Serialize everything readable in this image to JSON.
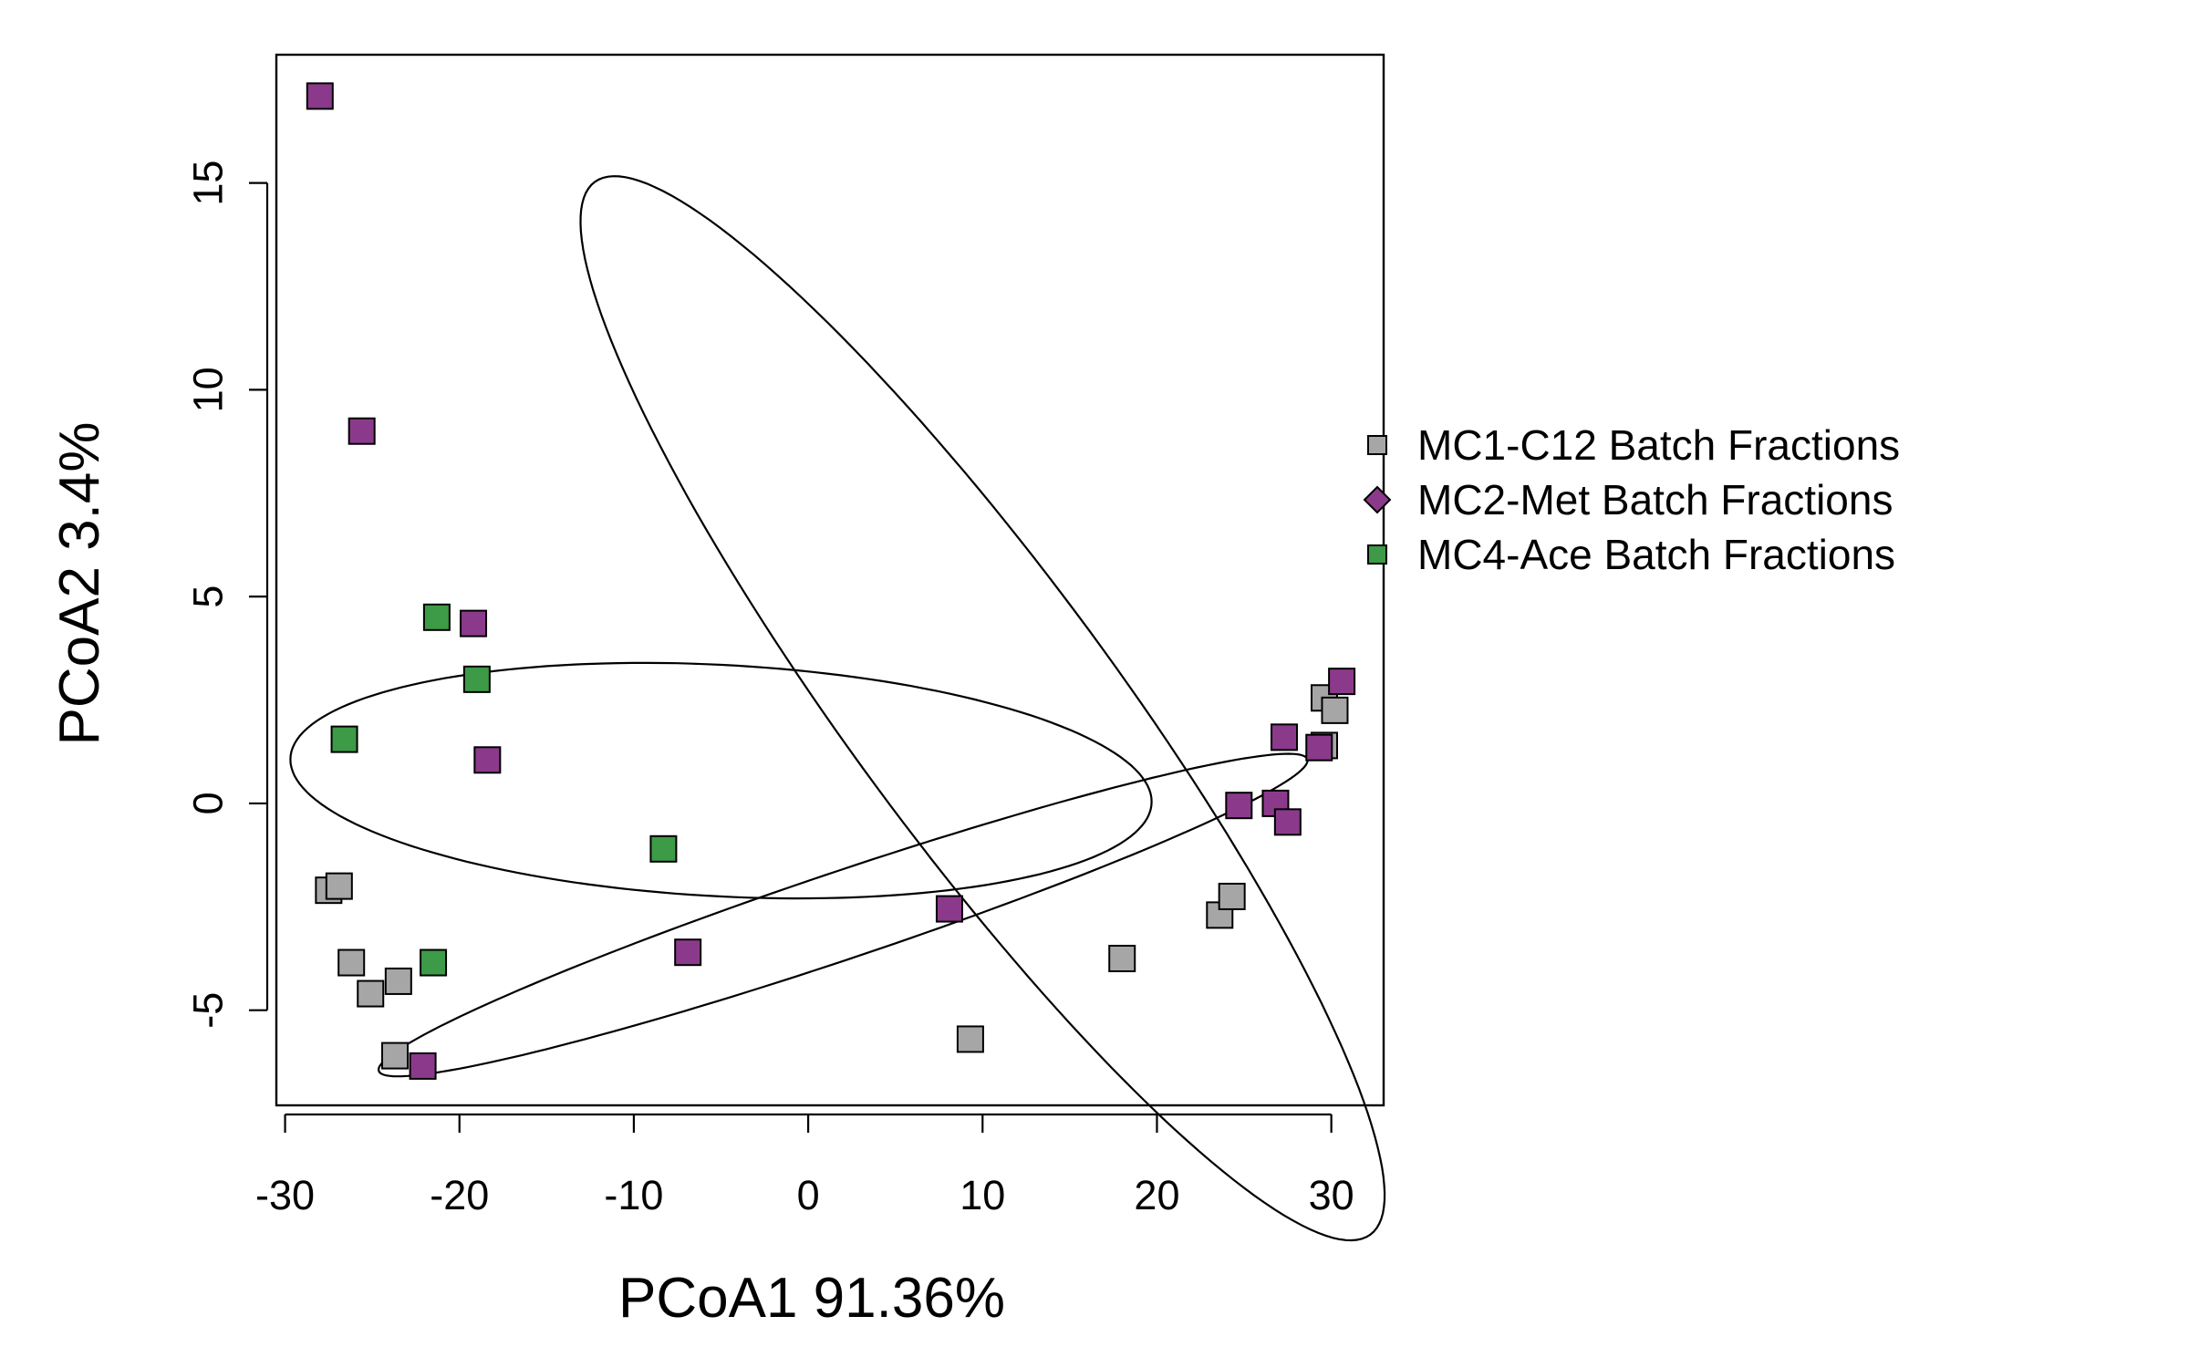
{
  "chart_data": {
    "type": "scatter",
    "title": "",
    "xlabel": "PCoA1 91.36%",
    "ylabel": "PCoA2 3.4%",
    "xlim": [
      -30.5,
      33
    ],
    "ylim": [
      -7.3,
      18.1
    ],
    "xticks": [
      -30,
      -20,
      -10,
      0,
      10,
      20,
      30
    ],
    "yticks": [
      -5,
      0,
      5,
      10,
      15
    ],
    "legend_position": "right",
    "series": [
      {
        "name": "MC1-C12 Batch Fractions",
        "color": "#a6a6a6",
        "marker": "square",
        "points": [
          [
            -27.5,
            -2.1
          ],
          [
            -26.9,
            -2.0
          ],
          [
            -26.2,
            -3.85
          ],
          [
            -25.1,
            -4.6
          ],
          [
            -23.5,
            -4.3
          ],
          [
            -23.7,
            -6.1
          ],
          [
            9.3,
            -5.7
          ],
          [
            18.0,
            -3.75
          ],
          [
            23.6,
            -2.7
          ],
          [
            24.3,
            -2.25
          ],
          [
            29.6,
            2.55
          ],
          [
            30.2,
            2.25
          ],
          [
            29.6,
            1.4
          ]
        ]
      },
      {
        "name": "MC2-Met Batch Fractions",
        "color": "#8b3a8b",
        "marker": "square",
        "legend_marker": "diamond",
        "points": [
          [
            -28.0,
            17.1
          ],
          [
            -25.6,
            9.0
          ],
          [
            -19.2,
            4.35
          ],
          [
            -18.4,
            1.05
          ],
          [
            -22.1,
            -6.35
          ],
          [
            -6.9,
            -3.6
          ],
          [
            8.1,
            -2.55
          ],
          [
            24.7,
            -0.05
          ],
          [
            26.8,
            0.0
          ],
          [
            27.3,
            1.6
          ],
          [
            27.5,
            -0.45
          ],
          [
            29.3,
            1.35
          ],
          [
            30.6,
            2.95
          ]
        ]
      },
      {
        "name": "MC4-Ace Batch Fractions",
        "color": "#3d9a47",
        "marker": "square",
        "points": [
          [
            -21.3,
            4.5
          ],
          [
            -19.0,
            3.0
          ],
          [
            -26.6,
            1.55
          ],
          [
            -8.3,
            -1.1
          ],
          [
            -21.5,
            -3.85
          ]
        ]
      }
    ],
    "ellipses": [
      {
        "cx": 10.0,
        "cy": 2.3,
        "rx": 26.0,
        "ry": 4.6,
        "angle_deg": -28
      },
      {
        "cx": -5.0,
        "cy": 0.55,
        "rx": 24.7,
        "ry": 2.8,
        "angle_deg": -1.2
      },
      {
        "cx": 2.0,
        "cy": -2.7,
        "rx": 26.9,
        "ry": 1.1,
        "angle_deg": 8.0
      }
    ]
  }
}
